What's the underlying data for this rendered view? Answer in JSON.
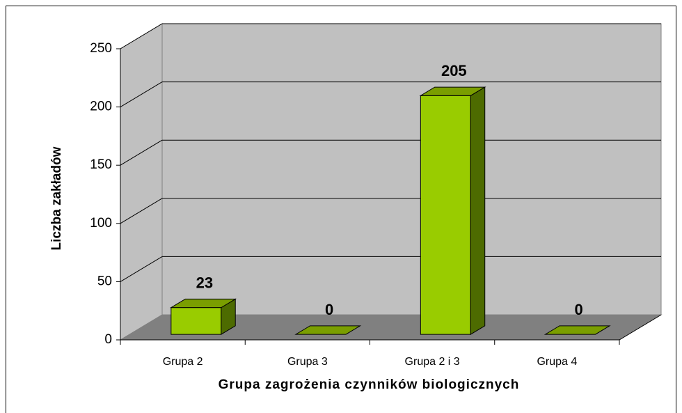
{
  "chart_data": {
    "type": "bar3d",
    "categories": [
      "Grupa 2",
      "Grupa 3",
      "Grupa 2 i 3",
      "Grupa 4"
    ],
    "values": [
      23,
      0,
      205,
      0
    ],
    "color": "#99cc00",
    "ylim": [
      0,
      250
    ],
    "yticks": [
      0,
      50,
      100,
      150,
      200,
      250
    ],
    "xlabel": "Grupa zagrożenia czynników biologicznych",
    "ylabel": "Liczba zakładów",
    "grid": true
  }
}
